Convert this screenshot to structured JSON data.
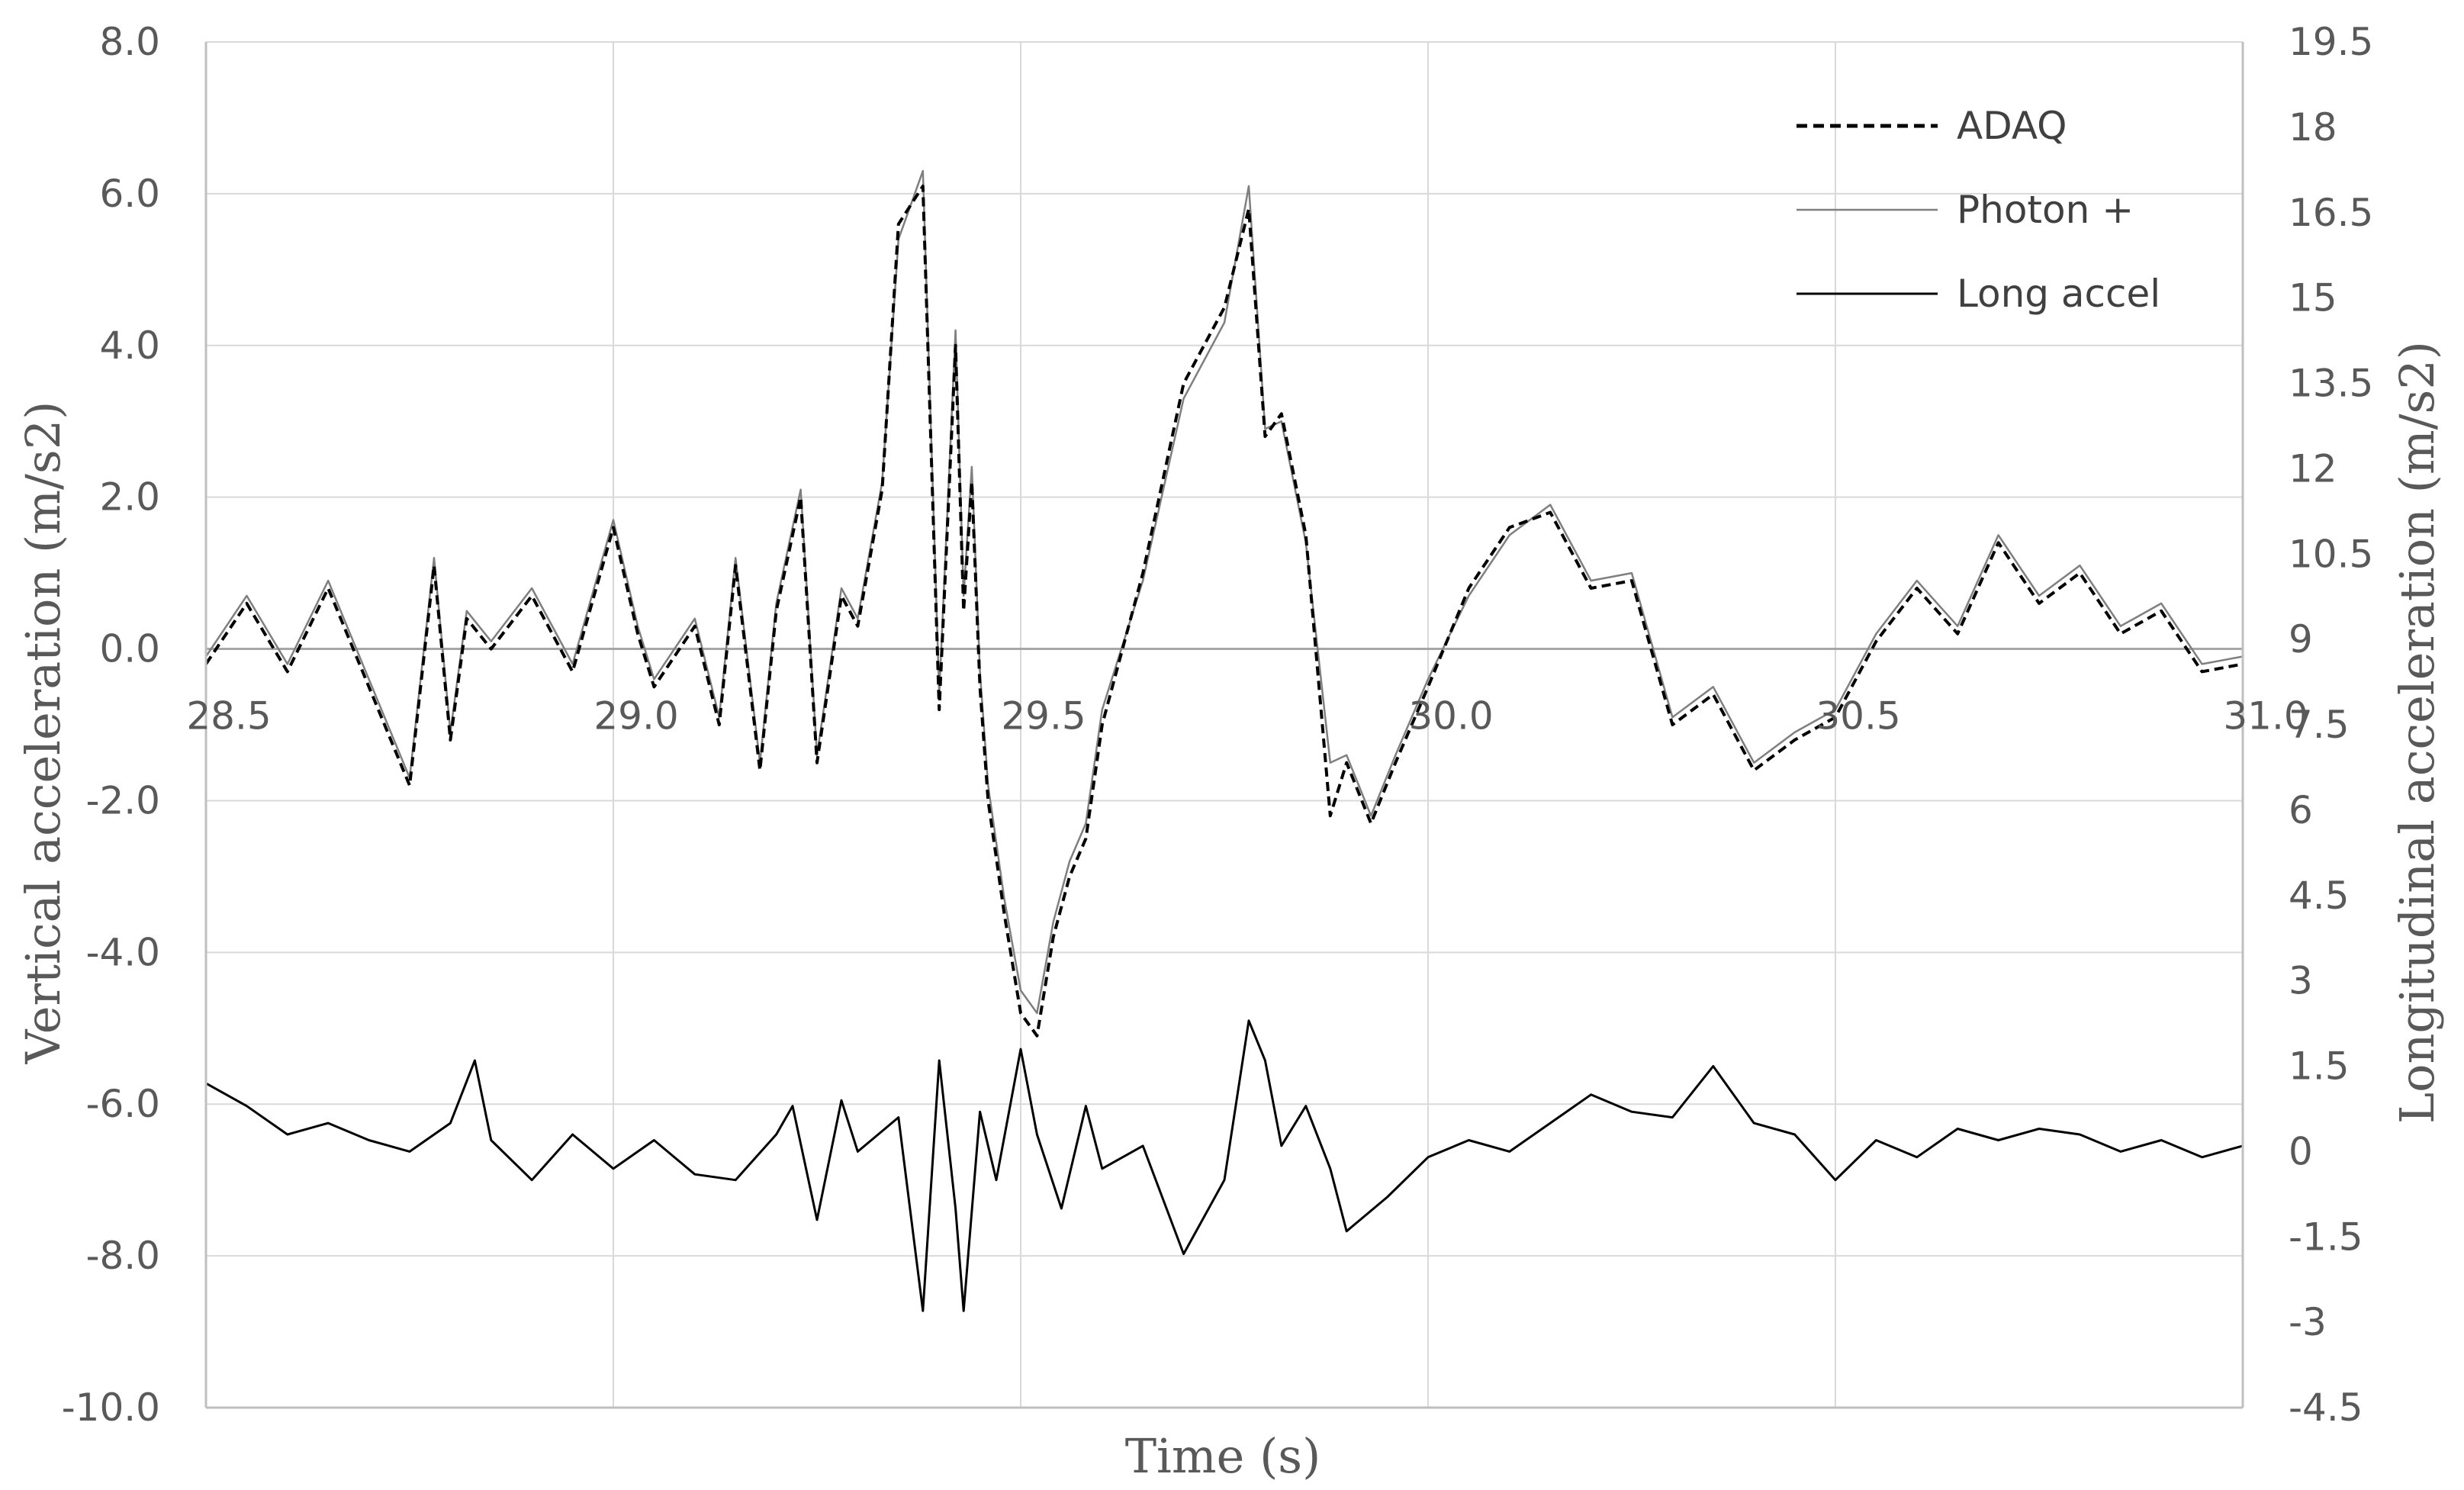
{
  "chart_data": {
    "type": "line",
    "title": "",
    "xlabel": "Time (s)",
    "ylabel_left": "Vertical acceleration (m/s2)",
    "ylabel_right": "Longitudinal acceleration (m/s2)",
    "xlim": [
      28.5,
      31.0
    ],
    "ylim_left": [
      -10.0,
      8.0
    ],
    "ylim_right": [
      -4.5,
      19.5
    ],
    "x_ticks": [
      "28.5",
      "29.0",
      "29.5",
      "30.0",
      "30.5",
      "31.0"
    ],
    "y_left_ticks": [
      "8.0",
      "6.0",
      "4.0",
      "2.0",
      "0.0",
      "-2.0",
      "-4.0",
      "-6.0",
      "-8.0",
      "-10.0"
    ],
    "y_right_ticks": [
      "19.5",
      "18",
      "16.5",
      "15",
      "13.5",
      "12",
      "10.5",
      "9",
      "7.5",
      "6",
      "4.5",
      "3",
      "1.5",
      "0",
      "-1.5",
      "-3",
      "-4.5"
    ],
    "grid": true,
    "legend_position": "top-right",
    "series": [
      {
        "name": "ADAQ",
        "axis": "left",
        "style": "dashed",
        "color": "#000000",
        "x": [
          28.5,
          28.55,
          28.6,
          28.65,
          28.7,
          28.75,
          28.78,
          28.8,
          28.82,
          28.85,
          28.9,
          28.95,
          29.0,
          29.03,
          29.05,
          29.1,
          29.13,
          29.15,
          29.18,
          29.2,
          29.23,
          29.25,
          29.28,
          29.3,
          29.33,
          29.35,
          29.38,
          29.4,
          29.42,
          29.43,
          29.44,
          29.45,
          29.46,
          29.48,
          29.5,
          29.52,
          29.54,
          29.56,
          29.58,
          29.6,
          29.65,
          29.7,
          29.75,
          29.78,
          29.8,
          29.82,
          29.85,
          29.88,
          29.9,
          29.93,
          29.96,
          30.0,
          30.05,
          30.1,
          30.15,
          30.2,
          30.25,
          30.3,
          30.35,
          30.4,
          30.45,
          30.5,
          30.55,
          30.6,
          30.65,
          30.7,
          30.75,
          30.8,
          30.85,
          30.9,
          30.95,
          31.0
        ],
        "y": [
          -0.2,
          0.6,
          -0.3,
          0.8,
          -0.5,
          -1.8,
          1.1,
          -1.2,
          0.4,
          0.0,
          0.7,
          -0.3,
          1.6,
          0.2,
          -0.5,
          0.3,
          -1.0,
          1.1,
          -1.6,
          0.5,
          2.0,
          -1.5,
          0.7,
          0.3,
          2.1,
          5.6,
          6.1,
          -0.8,
          4.0,
          0.5,
          2.2,
          -0.5,
          -2.0,
          -3.5,
          -4.8,
          -5.1,
          -3.8,
          -3.0,
          -2.5,
          -1.0,
          1.0,
          3.5,
          4.5,
          5.8,
          2.8,
          3.1,
          1.5,
          -2.2,
          -1.5,
          -2.3,
          -1.5,
          -0.5,
          0.8,
          1.6,
          1.8,
          0.8,
          0.9,
          -1.0,
          -0.6,
          -1.6,
          -1.2,
          -0.9,
          0.1,
          0.8,
          0.2,
          1.4,
          0.6,
          1.0,
          0.2,
          0.5,
          -0.3,
          -0.2
        ]
      },
      {
        "name": "Photon +",
        "axis": "left",
        "style": "solid-thin",
        "color": "#7f7f7f",
        "x": [
          28.5,
          28.55,
          28.6,
          28.65,
          28.7,
          28.75,
          28.78,
          28.8,
          28.82,
          28.85,
          28.9,
          28.95,
          29.0,
          29.03,
          29.05,
          29.1,
          29.13,
          29.15,
          29.18,
          29.2,
          29.23,
          29.25,
          29.28,
          29.3,
          29.33,
          29.35,
          29.38,
          29.4,
          29.42,
          29.43,
          29.44,
          29.45,
          29.46,
          29.48,
          29.5,
          29.52,
          29.54,
          29.56,
          29.58,
          29.6,
          29.65,
          29.7,
          29.75,
          29.78,
          29.8,
          29.82,
          29.85,
          29.88,
          29.9,
          29.93,
          29.96,
          30.0,
          30.05,
          30.1,
          30.15,
          30.2,
          30.25,
          30.3,
          30.35,
          30.4,
          30.45,
          30.5,
          30.55,
          30.6,
          30.65,
          30.7,
          30.75,
          30.8,
          30.85,
          30.9,
          30.95,
          31.0
        ],
        "y": [
          -0.1,
          0.7,
          -0.2,
          0.9,
          -0.4,
          -1.7,
          1.2,
          -1.1,
          0.5,
          0.1,
          0.8,
          -0.2,
          1.7,
          0.3,
          -0.4,
          0.4,
          -0.9,
          1.2,
          -1.5,
          0.6,
          2.1,
          -1.4,
          0.8,
          0.4,
          2.2,
          5.4,
          6.3,
          -0.6,
          4.2,
          0.7,
          2.4,
          -0.3,
          -1.8,
          -3.3,
          -4.5,
          -4.8,
          -3.6,
          -2.8,
          -2.3,
          -0.8,
          0.9,
          3.3,
          4.3,
          6.1,
          2.9,
          3.0,
          1.4,
          -1.5,
          -1.4,
          -2.2,
          -1.4,
          -0.4,
          0.7,
          1.5,
          1.9,
          0.9,
          1.0,
          -0.9,
          -0.5,
          -1.5,
          -1.1,
          -0.8,
          0.2,
          0.9,
          0.3,
          1.5,
          0.7,
          1.1,
          0.3,
          0.6,
          -0.2,
          -0.1
        ]
      },
      {
        "name": "Long accel",
        "axis": "right",
        "style": "solid",
        "color": "#000000",
        "x": [
          28.5,
          28.55,
          28.6,
          28.65,
          28.7,
          28.75,
          28.8,
          28.83,
          28.85,
          28.9,
          28.95,
          29.0,
          29.05,
          29.1,
          29.15,
          29.2,
          29.22,
          29.25,
          29.28,
          29.3,
          29.35,
          29.38,
          29.4,
          29.42,
          29.43,
          29.45,
          29.47,
          29.5,
          29.52,
          29.55,
          29.58,
          29.6,
          29.65,
          29.7,
          29.75,
          29.78,
          29.8,
          29.82,
          29.85,
          29.88,
          29.9,
          29.95,
          30.0,
          30.05,
          30.1,
          30.15,
          30.2,
          30.25,
          30.3,
          30.35,
          30.4,
          30.45,
          30.5,
          30.55,
          30.6,
          30.65,
          30.7,
          30.75,
          30.8,
          30.85,
          30.9,
          30.95,
          31.0
        ],
        "y": [
          1.2,
          0.8,
          0.3,
          0.5,
          0.2,
          0.0,
          0.5,
          1.6,
          0.2,
          -0.5,
          0.3,
          -0.3,
          0.2,
          -0.4,
          -0.5,
          0.3,
          0.8,
          -1.2,
          0.9,
          0.0,
          0.6,
          -2.8,
          1.6,
          -1.0,
          -2.8,
          0.7,
          -0.5,
          1.8,
          0.3,
          -1.0,
          0.8,
          -0.3,
          0.1,
          -1.8,
          -0.5,
          2.3,
          1.6,
          0.1,
          0.8,
          -0.3,
          -1.4,
          -0.8,
          -0.1,
          0.2,
          0.0,
          0.5,
          1.0,
          0.7,
          0.6,
          1.5,
          0.5,
          0.3,
          -0.5,
          0.2,
          -0.1,
          0.4,
          0.2,
          0.4,
          0.3,
          0.0,
          0.2,
          -0.1,
          0.1
        ]
      }
    ]
  }
}
